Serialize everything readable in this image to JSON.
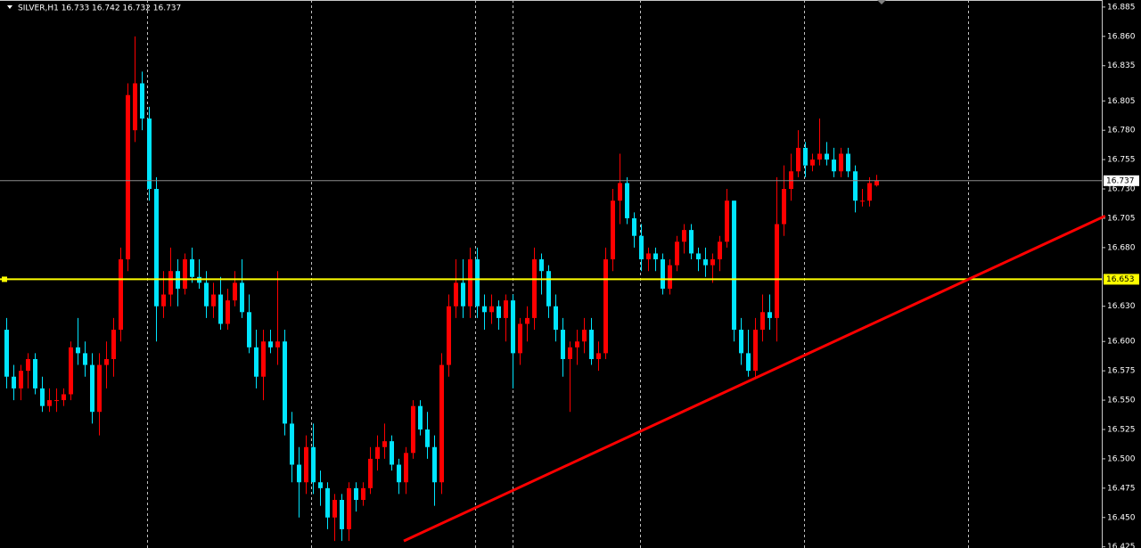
{
  "chart_data": {
    "type": "candlestick",
    "title": "SILVER,H1  16.733 16.742 16.732 16.737",
    "open": [
      16.61,
      16.57,
      16.56,
      16.575,
      16.585,
      16.56,
      16.545,
      16.55,
      16.55,
      16.555,
      16.595,
      16.59,
      16.58,
      16.54,
      16.58,
      16.585,
      16.61,
      16.67,
      16.78,
      16.82,
      16.79,
      16.73,
      16.63,
      16.64,
      16.66,
      16.645,
      16.67,
      16.655,
      16.65,
      16.63,
      16.64,
      16.615,
      16.635,
      16.65,
      16.625,
      16.595,
      16.57,
      16.6,
      16.595,
      16.6,
      16.53,
      16.495,
      16.48,
      16.51,
      16.48,
      16.475,
      16.45,
      16.465,
      16.44,
      16.475,
      16.465,
      16.475,
      16.5,
      16.51,
      16.515,
      16.495,
      16.48,
      16.505,
      16.545,
      16.525,
      16.51,
      16.48,
      16.58,
      16.63,
      16.65,
      16.63,
      16.67,
      16.63,
      16.625,
      16.63,
      16.62,
      16.635,
      16.59,
      16.615,
      16.62,
      16.67,
      16.66,
      16.63,
      16.61,
      16.585,
      16.595,
      16.6,
      16.61,
      16.585,
      16.59,
      16.67,
      16.72,
      16.735,
      16.705,
      16.69,
      16.67,
      16.675,
      16.67,
      16.645,
      16.665,
      16.685,
      16.695,
      16.675,
      16.67,
      16.665,
      16.67,
      16.685,
      16.72,
      16.61,
      16.59,
      16.575,
      16.61,
      16.625,
      16.62,
      16.7,
      16.73,
      16.745,
      16.765,
      16.75,
      16.755,
      16.76,
      16.755,
      16.745,
      16.76,
      16.745,
      16.72,
      16.72,
      16.733
    ],
    "high": [
      16.62,
      16.58,
      16.58,
      16.59,
      16.59,
      16.57,
      16.56,
      16.56,
      16.56,
      16.6,
      16.62,
      16.6,
      16.59,
      16.59,
      16.6,
      16.62,
      16.68,
      16.82,
      16.86,
      16.83,
      16.8,
      16.74,
      16.66,
      16.68,
      16.67,
      16.675,
      16.68,
      16.67,
      16.66,
      16.65,
      16.655,
      16.645,
      16.66,
      16.67,
      16.64,
      16.61,
      16.61,
      16.61,
      16.66,
      16.61,
      16.54,
      16.51,
      16.52,
      16.53,
      16.49,
      16.48,
      16.47,
      16.47,
      16.48,
      16.48,
      16.48,
      16.51,
      16.52,
      16.53,
      16.52,
      16.5,
      16.51,
      16.55,
      16.55,
      16.54,
      16.52,
      16.59,
      16.64,
      16.67,
      16.67,
      16.68,
      16.68,
      16.64,
      16.64,
      16.635,
      16.64,
      16.64,
      16.62,
      16.63,
      16.68,
      16.675,
      16.665,
      16.64,
      16.62,
      16.6,
      16.61,
      16.62,
      16.62,
      16.6,
      16.68,
      16.73,
      16.76,
      16.74,
      16.71,
      16.7,
      16.68,
      16.68,
      16.675,
      16.67,
      16.69,
      16.7,
      16.7,
      16.68,
      16.68,
      16.675,
      16.69,
      16.73,
      16.72,
      16.62,
      16.61,
      16.62,
      16.64,
      16.64,
      16.74,
      16.75,
      16.76,
      16.78,
      16.77,
      16.76,
      16.79,
      16.77,
      16.765,
      16.765,
      16.765,
      16.75,
      16.73,
      16.74,
      16.742
    ],
    "low": [
      16.56,
      16.55,
      16.55,
      16.56,
      16.555,
      16.54,
      16.54,
      16.54,
      16.545,
      16.55,
      16.58,
      16.57,
      16.53,
      16.52,
      16.56,
      16.57,
      16.6,
      16.66,
      16.77,
      16.78,
      16.72,
      16.6,
      16.62,
      16.63,
      16.63,
      16.64,
      16.65,
      16.645,
      16.62,
      16.62,
      16.61,
      16.61,
      16.63,
      16.62,
      16.59,
      16.56,
      16.55,
      16.59,
      16.58,
      16.52,
      16.48,
      16.45,
      16.47,
      16.47,
      16.46,
      16.44,
      16.43,
      16.43,
      16.43,
      16.455,
      16.46,
      16.47,
      16.49,
      16.5,
      16.49,
      16.47,
      16.47,
      16.5,
      16.52,
      16.5,
      16.46,
      16.47,
      16.57,
      16.62,
      16.62,
      16.62,
      16.62,
      16.61,
      16.615,
      16.61,
      16.6,
      16.56,
      16.58,
      16.6,
      16.61,
      16.64,
      16.62,
      16.6,
      16.57,
      16.54,
      16.58,
      16.59,
      16.58,
      16.575,
      16.585,
      16.66,
      16.7,
      16.7,
      16.68,
      16.66,
      16.66,
      16.66,
      16.64,
      16.64,
      16.66,
      16.675,
      16.67,
      16.66,
      16.655,
      16.65,
      16.66,
      16.68,
      16.6,
      16.58,
      16.57,
      16.57,
      16.6,
      16.61,
      16.6,
      16.69,
      16.72,
      16.74,
      16.74,
      16.745,
      16.75,
      16.75,
      16.74,
      16.74,
      16.74,
      16.71,
      16.715,
      16.715,
      16.732
    ],
    "close": [
      16.57,
      16.56,
      16.575,
      16.585,
      16.56,
      16.545,
      16.55,
      16.55,
      16.555,
      16.595,
      16.59,
      16.58,
      16.54,
      16.58,
      16.585,
      16.61,
      16.67,
      16.81,
      16.82,
      16.79,
      16.73,
      16.63,
      16.64,
      16.66,
      16.645,
      16.67,
      16.655,
      16.65,
      16.63,
      16.64,
      16.615,
      16.635,
      16.65,
      16.625,
      16.595,
      16.57,
      16.6,
      16.595,
      16.6,
      16.53,
      16.495,
      16.48,
      16.51,
      16.48,
      16.475,
      16.45,
      16.465,
      16.44,
      16.475,
      16.465,
      16.475,
      16.5,
      16.51,
      16.515,
      16.495,
      16.48,
      16.505,
      16.545,
      16.525,
      16.51,
      16.48,
      16.58,
      16.63,
      16.65,
      16.63,
      16.67,
      16.63,
      16.625,
      16.63,
      16.62,
      16.635,
      16.59,
      16.615,
      16.62,
      16.67,
      16.66,
      16.63,
      16.61,
      16.585,
      16.595,
      16.6,
      16.61,
      16.585,
      16.59,
      16.67,
      16.72,
      16.735,
      16.705,
      16.69,
      16.67,
      16.675,
      16.67,
      16.645,
      16.665,
      16.685,
      16.695,
      16.675,
      16.67,
      16.665,
      16.67,
      16.685,
      16.72,
      16.61,
      16.59,
      16.575,
      16.61,
      16.625,
      16.62,
      16.7,
      16.73,
      16.745,
      16.765,
      16.75,
      16.755,
      16.76,
      16.755,
      16.745,
      16.76,
      16.745,
      16.72,
      16.72,
      16.735,
      16.737
    ],
    "up_color": "#ff0000",
    "down_color": "#00e5ff",
    "ylim": [
      16.424,
      16.891
    ],
    "yticks": [
      16.885,
      {
        "value": 16.86,
        "label": "16.860"
      },
      16.835,
      16.805,
      {
        "value": 16.78,
        "label": "16.780"
      },
      16.755,
      {
        "value": 16.73,
        "label": "16.730"
      },
      16.705,
      {
        "value": 16.68,
        "label": "16.680"
      },
      {
        "value": 16.63,
        "label": "16.630"
      },
      {
        "value": 16.6,
        "label": "16.600"
      },
      16.575,
      {
        "value": 16.55,
        "label": "16.550"
      },
      16.525,
      {
        "value": 16.5,
        "label": "16.500"
      },
      16.475,
      {
        "value": 16.45,
        "label": "16.450"
      },
      16.425
    ],
    "hlines": [
      {
        "value": 16.737,
        "color": "#8c8c8c"
      },
      {
        "value": 16.653,
        "color": "#ffff00"
      }
    ],
    "trendline": {
      "x": [
        55.75,
        154.1
      ],
      "values": [
        16.43,
        16.707
      ],
      "color": "#ff0000"
    }
  }
}
